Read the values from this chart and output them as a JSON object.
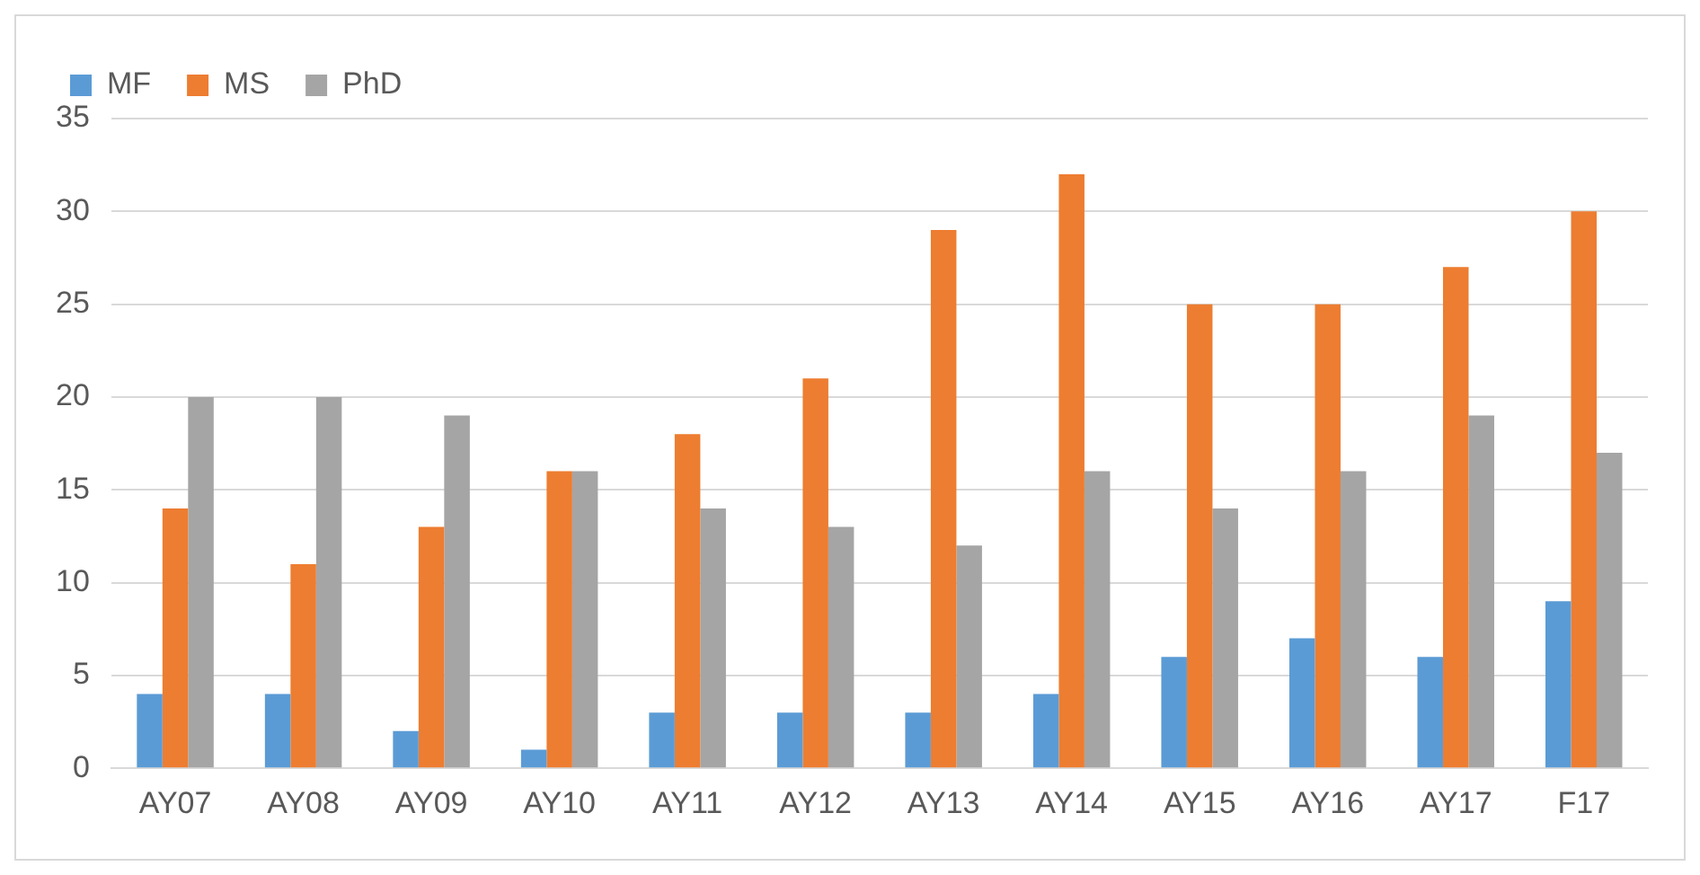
{
  "chart_data": {
    "type": "bar",
    "categories": [
      "AY07",
      "AY08",
      "AY09",
      "AY10",
      "AY11",
      "AY12",
      "AY13",
      "AY14",
      "AY15",
      "AY16",
      "AY17",
      "F17"
    ],
    "series": [
      {
        "name": "MF",
        "color": "#5b9bd5",
        "values": [
          4,
          4,
          2,
          1,
          3,
          3,
          3,
          4,
          6,
          7,
          6,
          9
        ]
      },
      {
        "name": "MS",
        "color": "#ed7d31",
        "values": [
          14,
          11,
          13,
          16,
          18,
          21,
          29,
          32,
          25,
          25,
          27,
          30
        ]
      },
      {
        "name": "PhD",
        "color": "#a5a5a5",
        "values": [
          20,
          20,
          19,
          16,
          14,
          13,
          12,
          16,
          14,
          16,
          19,
          17
        ]
      }
    ],
    "ylim": [
      0,
      35
    ],
    "yticks": [
      0,
      5,
      10,
      15,
      20,
      25,
      30,
      35
    ],
    "grid": "y",
    "legend": "top left"
  }
}
